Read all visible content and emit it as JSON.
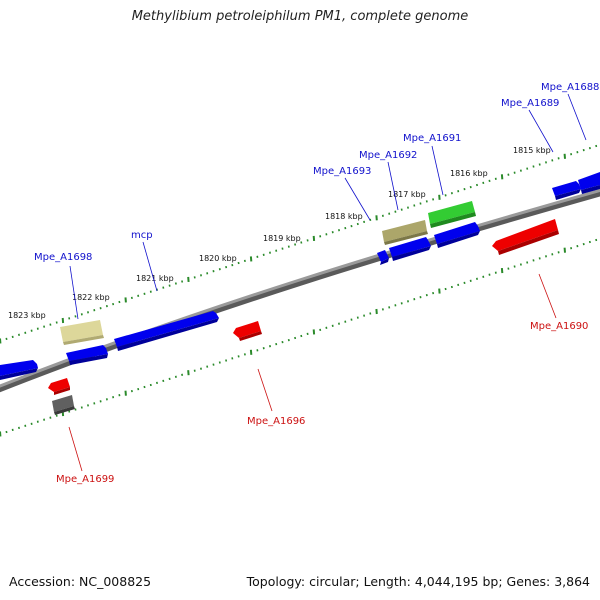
{
  "title": "Methylibium petroleiphilum PM1, complete genome",
  "footer": {
    "accession": "Accession: NC_008825",
    "summary": "Topology: circular; Length: 4,044,195 bp; Genes: 3,864"
  },
  "colors": {
    "forward_gene": "#0000ee",
    "reverse_gene": "#ee0000",
    "rna_gene": "#ddd79a",
    "pseudo_gene": "#aca66a",
    "highlight_gene": "#33cc33",
    "gray_gene": "#606060",
    "axis": "#8a8a8a",
    "ticks": "#2a8a2a",
    "forward_label": "#1111cc",
    "reverse_label": "#cc1111"
  },
  "scale_labels": [
    "1823 kbp",
    "1822 kbp",
    "1821 kbp",
    "1820 kbp",
    "1819 kbp",
    "1818 kbp",
    "1817 kbp",
    "1816 kbp",
    "1815 kbp"
  ],
  "gene_labels_top": [
    "Mpe_A1698",
    "mcp",
    "Mpe_A1693",
    "Mpe_A1692",
    "Mpe_A1691",
    "Mpe_A1689",
    "Mpe_A1688"
  ],
  "gene_labels_bottom": [
    "Mpe_A1699",
    "Mpe_A1696",
    "Mpe_A1690"
  ]
}
